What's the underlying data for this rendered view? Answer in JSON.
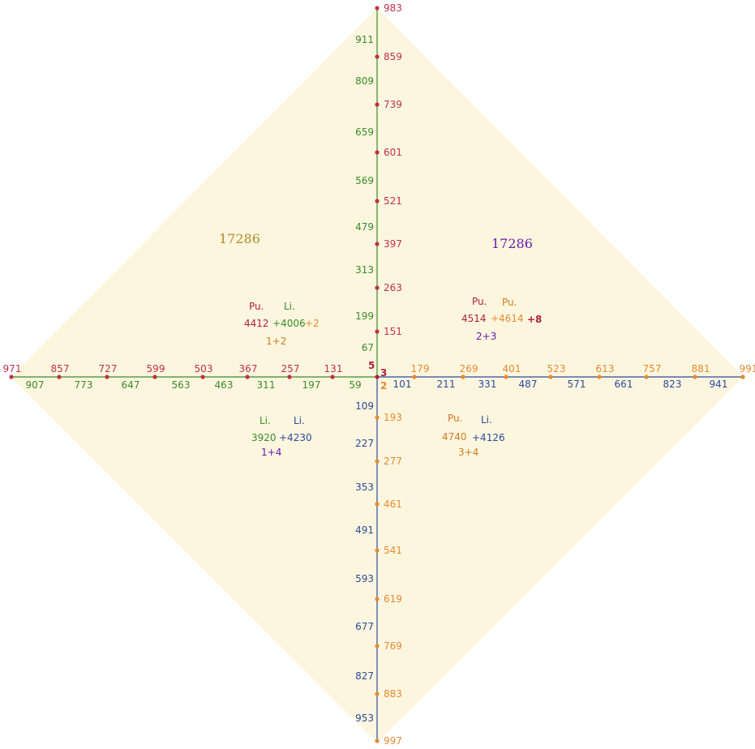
{
  "colors": {
    "red": "#c0304a",
    "green": "#3a8a2a",
    "blue": "#2a4a9a",
    "orange": "#e88a30",
    "brown": "#b08a2a",
    "purple": "#6a1ab0",
    "darkred": "#b0203a",
    "tan": "#d27a20",
    "fill": "#fdf6df"
  },
  "totals": {
    "left": "17286",
    "right": "17286"
  },
  "center": {
    "top": "5",
    "right": "3",
    "bottom": "2"
  },
  "axes": {
    "up_red": [
      "983",
      "859",
      "739",
      "601",
      "521",
      "397",
      "263",
      "151"
    ],
    "up_green": [
      "911",
      "809",
      "659",
      "569",
      "479",
      "313",
      "199",
      "67"
    ],
    "left_red": [
      "971",
      "857",
      "727",
      "599",
      "503",
      "367",
      "257",
      "131"
    ],
    "left_green": [
      "907",
      "773",
      "647",
      "563",
      "463",
      "311",
      "197",
      "59"
    ],
    "right_orange": [
      "179",
      "269",
      "401",
      "523",
      "613",
      "757",
      "881",
      "991"
    ],
    "right_blue": [
      "101",
      "211",
      "331",
      "487",
      "571",
      "661",
      "823",
      "941"
    ],
    "down_orange": [
      "193",
      "277",
      "461",
      "541",
      "619",
      "769",
      "883",
      "997"
    ],
    "down_blue": [
      "109",
      "227",
      "353",
      "491",
      "593",
      "677",
      "827",
      "953"
    ]
  },
  "quadrants": {
    "top_left": {
      "h1": "Pu.",
      "h2": "Li.",
      "v1": "4412",
      "v2": "+4006",
      "v3": "+2",
      "sum": "1+2"
    },
    "top_right": {
      "h1": "Pu.",
      "h2": "Pu.",
      "v1": "4514",
      "v2": "+4614",
      "v3": "+8",
      "sum": "2+3"
    },
    "bottom_left": {
      "h1": "Li.",
      "h2": "Li.",
      "v1": "3920",
      "v2": "+4230",
      "sum": "1+4"
    },
    "bottom_right": {
      "h1": "Pu.",
      "h2": "Li.",
      "v1": "4740",
      "v2": "+4126",
      "sum": "3+4"
    }
  }
}
